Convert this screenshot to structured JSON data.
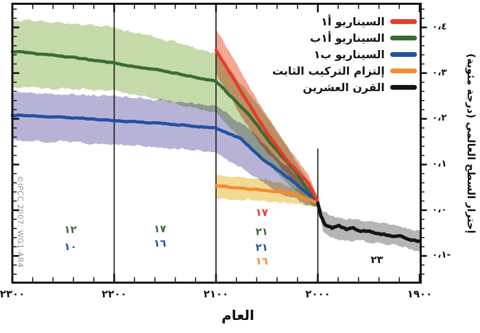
{
  "ui": {
    "xlabel": "العام",
    "ylabel": "إحترار السطح العالمي (درجة مئوية)",
    "copyright": "©IPCC 2007: WG1-AR4",
    "legend": {
      "items": [
        {
          "label": "السيناريو أ١",
          "color": "#e73b2c"
        },
        {
          "label": "السيناريو أ١ب",
          "color": "#3a6b33"
        },
        {
          "label": "السيناريو ب١",
          "color": "#2151a3"
        },
        {
          "label": "إلتزام التركيب الثابت",
          "color": "#f78b31"
        },
        {
          "label": "القرن العشرين",
          "color": "#141414"
        }
      ]
    }
  },
  "chart_data": {
    "type": "line",
    "title": "",
    "xlabel": "العام",
    "ylabel": "إحترار السطح العالمي (درجة مئوية)",
    "x_axis": {
      "min": 1900,
      "max": 2300,
      "reversed": true,
      "minor_step": 20,
      "major_ticks": [
        2300,
        2200,
        2100,
        2000,
        1900
      ],
      "tick_labels": [
        "٢٣٠٠",
        "٢٢٠٠",
        "٢١٠٠",
        "٢٠٠٠",
        "١٩٠٠"
      ]
    },
    "y_axis": {
      "min": -0.157,
      "max": 0.451,
      "minor_step": 0.02,
      "major_ticks": [
        0.4,
        0.3,
        0.2,
        0.1,
        0.0,
        -0.1
      ],
      "tick_labels": [
        "٠،٤",
        "٠،٣",
        "٠،٢",
        "٠،١",
        "٠،٠",
        "٠،١-"
      ]
    },
    "guide_lines": [
      {
        "year": 2200,
        "v1": -0.157,
        "v2": 0.451
      },
      {
        "year": 2100,
        "v1": -0.157,
        "v2": 0.451
      },
      {
        "year": 2000,
        "v1": -0.157,
        "v2": 0.135
      }
    ],
    "series": [
      {
        "name": "السيناريو أ١ب",
        "color": "#3a6b33",
        "band_color": "#c5daa9",
        "line": {
          "years": [
            2300,
            2250,
            2200,
            2150,
            2100,
            2067,
            2045,
            2023,
            2005,
            2000
          ],
          "values": [
            0.348,
            0.337,
            0.322,
            0.304,
            0.282,
            0.208,
            0.142,
            0.088,
            0.028,
            0.016
          ]
        },
        "band_top": {
          "years": [
            2300,
            2250,
            2200,
            2150,
            2100,
            2060,
            2030,
            2005,
            2000
          ],
          "values": [
            0.418,
            0.41,
            0.4,
            0.373,
            0.343,
            0.235,
            0.138,
            0.048,
            0.025
          ]
        },
        "band_bottom": {
          "years": [
            2300,
            2250,
            2200,
            2150,
            2100,
            2060,
            2030,
            2005,
            2000
          ],
          "values": [
            0.27,
            0.266,
            0.262,
            0.24,
            0.213,
            0.123,
            0.058,
            0.012,
            0.01
          ]
        }
      },
      {
        "name": "السيناريو ب١",
        "color": "#2151a3",
        "band_color": "#b7b3d6",
        "line": {
          "years": [
            2300,
            2250,
            2200,
            2150,
            2100,
            2076,
            2054,
            2030,
            2010,
            2000
          ],
          "values": [
            0.208,
            0.204,
            0.196,
            0.189,
            0.18,
            0.157,
            0.112,
            0.073,
            0.037,
            0.018
          ]
        },
        "band_top": {
          "years": [
            2300,
            2250,
            2200,
            2150,
            2100,
            2070,
            2040,
            2010,
            2000
          ],
          "values": [
            0.258,
            0.254,
            0.25,
            0.24,
            0.228,
            0.183,
            0.115,
            0.052,
            0.022
          ]
        },
        "band_bottom": {
          "years": [
            2300,
            2250,
            2200,
            2150,
            2100,
            2070,
            2040,
            2010,
            2000
          ],
          "values": [
            0.153,
            0.149,
            0.145,
            0.137,
            0.127,
            0.085,
            0.04,
            0.012,
            0.007
          ]
        }
      },
      {
        "name": "إلتزام التركيب الثابت",
        "color": "#f78b31",
        "band_color": "#f2da93",
        "line": {
          "years": [
            2100,
            2080,
            2050,
            2030,
            2015,
            2000
          ],
          "values": [
            0.054,
            0.049,
            0.043,
            0.039,
            0.028,
            0.016
          ]
        },
        "band_top": {
          "years": [
            2100,
            2050,
            2020,
            2000
          ],
          "values": [
            0.078,
            0.067,
            0.046,
            0.025
          ]
        },
        "band_bottom": {
          "years": [
            2100,
            2050,
            2020,
            2000
          ],
          "values": [
            0.025,
            0.021,
            0.015,
            0.007
          ]
        }
      },
      {
        "name": "السيناريو أ١",
        "color": "#e73b2c",
        "band_color": "#f4a793",
        "line": {
          "years": [
            2100,
            2076,
            2054,
            2031,
            2009,
            2000
          ],
          "values": [
            0.351,
            0.262,
            0.183,
            0.112,
            0.058,
            0.018
          ]
        },
        "band_top": {
          "years": [
            2100,
            2076,
            2054,
            2031,
            2009,
            2000
          ],
          "values": [
            0.397,
            0.303,
            0.22,
            0.142,
            0.076,
            0.028
          ]
        },
        "band_bottom": {
          "years": [
            2100,
            2076,
            2054,
            2031,
            2009,
            2000
          ],
          "values": [
            0.298,
            0.208,
            0.138,
            0.078,
            0.033,
            0.01
          ]
        }
      },
      {
        "name": "القرن العشرين",
        "color": "#141414",
        "band_color": "#b5b5b5",
        "line": {
          "years": [
            2000,
            1997,
            1993,
            1986,
            1979,
            1972,
            1965,
            1959,
            1952,
            1945,
            1938,
            1932,
            1925,
            1918,
            1911,
            1905,
            1900
          ],
          "values": [
            0.016,
            -0.012,
            -0.031,
            -0.039,
            -0.034,
            -0.042,
            -0.039,
            -0.045,
            -0.045,
            -0.049,
            -0.052,
            -0.054,
            -0.058,
            -0.058,
            -0.063,
            -0.066,
            -0.067
          ]
        },
        "band_top": {
          "years": [
            2000,
            1995,
            1980,
            1960,
            1940,
            1920,
            1900
          ],
          "values": [
            0.02,
            -0.004,
            -0.016,
            -0.022,
            -0.028,
            -0.036,
            -0.045
          ]
        },
        "band_bottom": {
          "years": [
            2000,
            1995,
            1980,
            1960,
            1940,
            1920,
            1900
          ],
          "values": [
            0.01,
            -0.049,
            -0.064,
            -0.067,
            -0.072,
            -0.079,
            -0.091
          ]
        }
      }
    ],
    "annotations": [
      {
        "text": "١٢",
        "color": "#3a6b33",
        "year": 2243,
        "value": -0.042
      },
      {
        "text": "١٠",
        "color": "#2151a3",
        "year": 2243,
        "value": -0.08
      },
      {
        "text": "١٧",
        "color": "#3a6b33",
        "year": 2155,
        "value": -0.041
      },
      {
        "text": "١٦",
        "color": "#2151a3",
        "year": 2155,
        "value": -0.072
      },
      {
        "text": "١٧",
        "color": "#e73b2c",
        "year": 2055,
        "value": -0.005
      },
      {
        "text": "٢١",
        "color": "#3a6b33",
        "year": 2055,
        "value": -0.047
      },
      {
        "text": "٢١",
        "color": "#2151a3",
        "year": 2055,
        "value": -0.081
      },
      {
        "text": "١٦",
        "color": "#f78b31",
        "year": 2055,
        "value": -0.112
      },
      {
        "text": "٢٣",
        "color": "#141414",
        "year": 1942,
        "value": -0.109
      }
    ]
  }
}
